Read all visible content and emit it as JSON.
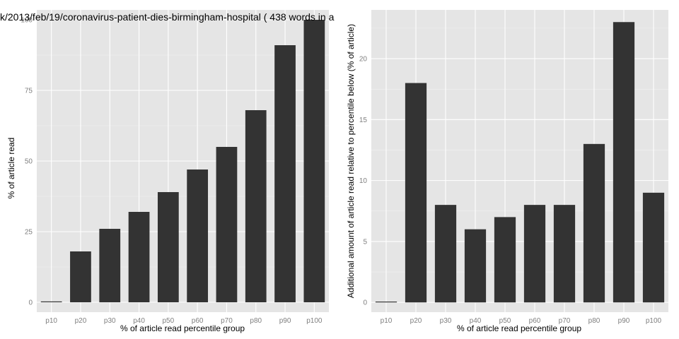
{
  "chart_data": [
    {
      "type": "bar",
      "title": "k/2013/feb/19/coronavirus-patient-dies-birmingham-hospital ( 438 words in a",
      "categories": [
        "p10",
        "p20",
        "p30",
        "p40",
        "p50",
        "p60",
        "p70",
        "p80",
        "p90",
        "p100"
      ],
      "values": [
        0,
        18,
        26,
        32,
        39,
        47,
        55,
        68,
        91,
        100
      ],
      "xlabel": "% of article read percentile group",
      "ylabel": "% of article read",
      "ylim": [
        -3.5,
        103.5
      ],
      "yticks": [
        0,
        25,
        50,
        75,
        100
      ],
      "grid": true
    },
    {
      "type": "bar",
      "title": "",
      "categories": [
        "p10",
        "p20",
        "p30",
        "p40",
        "p50",
        "p60",
        "p70",
        "p80",
        "p90",
        "p100"
      ],
      "values": [
        0,
        18,
        8,
        6,
        7,
        8,
        8,
        13,
        23,
        9
      ],
      "xlabel": "% of article read percentile group",
      "ylabel": "Additional amount of article read relative to percentile below (% of article)",
      "ylim": [
        -0.8,
        24
      ],
      "yticks": [
        0,
        5,
        10,
        15,
        20
      ],
      "grid": true
    }
  ]
}
